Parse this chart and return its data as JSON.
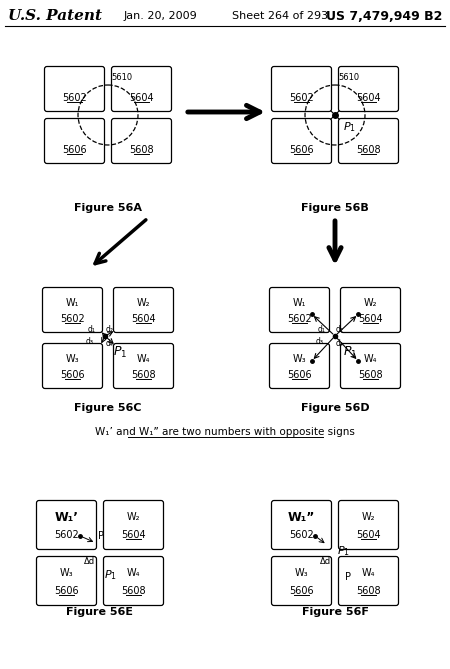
{
  "title_left": "U.S. Patent",
  "title_mid": "Jan. 20, 2009",
  "title_mid2": "Sheet 264 of 293",
  "title_right": "US 7,479,949 B2",
  "background": "#ffffff"
}
